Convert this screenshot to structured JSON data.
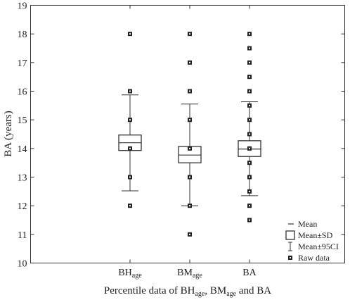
{
  "chart_data": {
    "type": "box",
    "ylabel": "BA (years)",
    "xlabel": "Percentile data of BH{age}, BM{age} and BA",
    "ylim": [
      10,
      19
    ],
    "yticks": [
      10,
      11,
      12,
      13,
      14,
      15,
      16,
      17,
      18,
      19
    ],
    "grid": false,
    "legend_position": "bottom-right",
    "legend": [
      {
        "symbol": "mean",
        "label": "Mean"
      },
      {
        "symbol": "box",
        "label": "Mean±SD"
      },
      {
        "symbol": "whisker",
        "label": "Mean±95CI"
      },
      {
        "symbol": "point",
        "label": "Raw data"
      }
    ],
    "categories": [
      {
        "base": "BH",
        "sub": "age"
      },
      {
        "base": "BM",
        "sub": "age"
      },
      {
        "base": "BA",
        "sub": ""
      }
    ],
    "series": [
      {
        "mean": 14.2,
        "sd_low": 13.93,
        "sd_high": 14.47,
        "ci_low": 12.52,
        "ci_high": 15.87,
        "points": [
          12,
          13,
          14,
          15,
          16,
          18
        ]
      },
      {
        "mean": 13.77,
        "sd_low": 13.5,
        "sd_high": 14.07,
        "ci_low": 12.0,
        "ci_high": 15.55,
        "points": [
          11,
          12,
          13,
          14,
          15,
          16,
          17,
          18
        ]
      },
      {
        "mean": 13.98,
        "sd_low": 13.72,
        "sd_high": 14.27,
        "ci_low": 12.35,
        "ci_high": 15.63,
        "points": [
          11.5,
          12,
          12.5,
          13,
          13.5,
          14,
          14.5,
          15,
          15.5,
          16,
          16.5,
          17,
          17.5,
          18
        ]
      }
    ]
  }
}
